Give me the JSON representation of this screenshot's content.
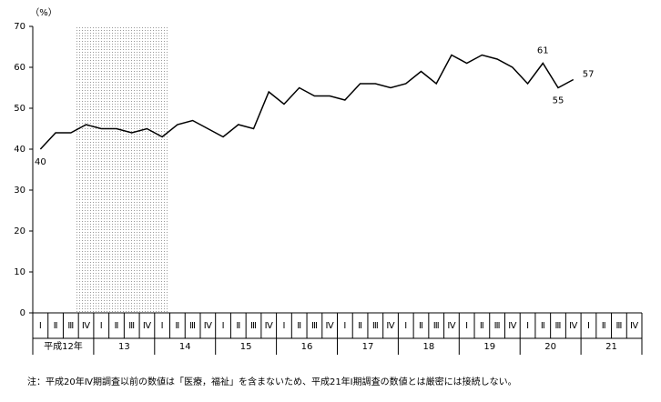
{
  "chart_data": {
    "type": "line",
    "y_label": "（%）",
    "categories": [
      "Ⅰ",
      "Ⅱ",
      "Ⅲ",
      "Ⅳ",
      "Ⅰ",
      "Ⅱ",
      "Ⅲ",
      "Ⅳ",
      "Ⅰ",
      "Ⅱ",
      "Ⅲ",
      "Ⅳ",
      "Ⅰ",
      "Ⅱ",
      "Ⅲ",
      "Ⅳ",
      "Ⅰ",
      "Ⅱ",
      "Ⅲ",
      "Ⅳ",
      "Ⅰ",
      "Ⅱ",
      "Ⅲ",
      "Ⅳ",
      "Ⅰ",
      "Ⅱ",
      "Ⅲ",
      "Ⅳ",
      "Ⅰ",
      "Ⅱ",
      "Ⅲ",
      "Ⅳ",
      "Ⅰ",
      "Ⅱ",
      "Ⅲ",
      "Ⅳ",
      "Ⅰ",
      "Ⅱ",
      "Ⅲ",
      "Ⅳ"
    ],
    "groups": [
      "平成12年",
      "13",
      "14",
      "15",
      "16",
      "17",
      "18",
      "19",
      "20",
      "21"
    ],
    "values": [
      40,
      44,
      44,
      46,
      45,
      45,
      44,
      45,
      43,
      46,
      47,
      45,
      43,
      46,
      45,
      54,
      51,
      55,
      53,
      53,
      52,
      56,
      56,
      55,
      56,
      59,
      56,
      63,
      61,
      63,
      62,
      60,
      56,
      61,
      55,
      57,
      null,
      null,
      null,
      null
    ],
    "color": "#000000",
    "data_labels": [
      {
        "index": 0,
        "position": "below"
      },
      {
        "index": 33,
        "position": "above"
      },
      {
        "index": 34,
        "position": "below"
      },
      {
        "index": 35,
        "position": "right"
      }
    ],
    "ylim": [
      0,
      70
    ],
    "yticks": [
      0,
      10,
      20,
      30,
      40,
      50,
      60,
      70
    ],
    "note": "注：平成20年Ⅳ期調査以前の数値は「医療，福祉」を含まないため、平成21年Ⅰ期調査の数値とは厳密には接続しない。"
  }
}
